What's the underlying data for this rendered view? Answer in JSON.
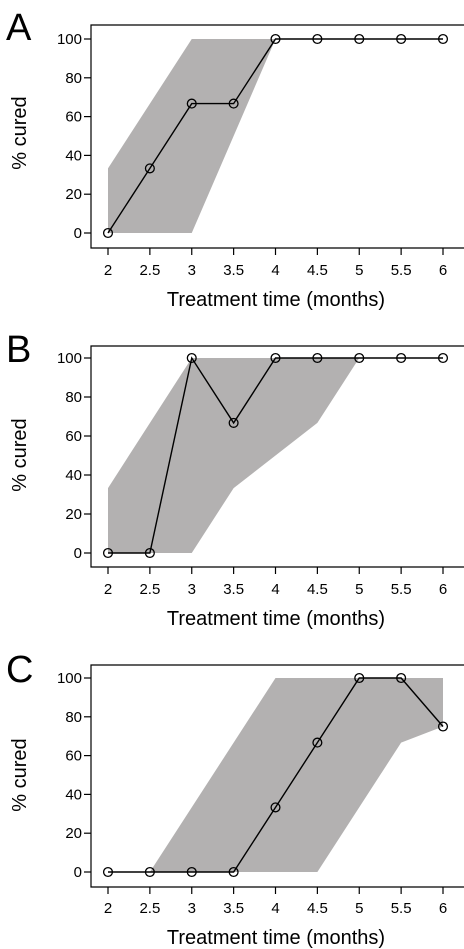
{
  "chart_data": [
    {
      "type": "line",
      "panel_label": "A",
      "xlabel": "Treatment time (months)",
      "ylabel": "% cured",
      "x_ticks": [
        "2",
        "2.5",
        "3",
        "3.5",
        "4",
        "4.5",
        "5",
        "5.5",
        "6"
      ],
      "y_ticks": [
        "0",
        "20",
        "40",
        "60",
        "80",
        "100"
      ],
      "xlim": [
        2,
        6
      ],
      "ylim": [
        0,
        100
      ],
      "series": [
        {
          "x": [
            2,
            2.5,
            3,
            3.5,
            4,
            4.5,
            5,
            5.5,
            6
          ],
          "y": [
            0,
            33.3,
            66.7,
            66.7,
            100,
            100,
            100,
            100,
            100
          ]
        }
      ],
      "band": {
        "upper": [
          [
            2,
            33.3
          ],
          [
            3,
            100
          ],
          [
            4.5,
            100
          ]
        ],
        "lower": [
          [
            2,
            0
          ],
          [
            3,
            0
          ],
          [
            4,
            100
          ],
          [
            4.5,
            100
          ]
        ]
      },
      "marker": "open-circle",
      "line_color": "#000000",
      "band_color": "#b3b1b1",
      "grid": false
    },
    {
      "type": "line",
      "panel_label": "B",
      "xlabel": "Treatment time (months)",
      "ylabel": "% cured",
      "x_ticks": [
        "2",
        "2.5",
        "3",
        "3.5",
        "4",
        "4.5",
        "5",
        "5.5",
        "6"
      ],
      "y_ticks": [
        "0",
        "20",
        "40",
        "60",
        "80",
        "100"
      ],
      "xlim": [
        2,
        6
      ],
      "ylim": [
        0,
        100
      ],
      "series": [
        {
          "x": [
            2,
            2.5,
            3,
            3.5,
            4,
            4.5,
            5,
            5.5,
            6
          ],
          "y": [
            0,
            0,
            100,
            66.7,
            100,
            100,
            100,
            100,
            100
          ]
        }
      ],
      "band": {
        "upper": [
          [
            2,
            33.3
          ],
          [
            3,
            100
          ],
          [
            5,
            100
          ]
        ],
        "lower": [
          [
            2,
            0
          ],
          [
            3,
            0
          ],
          [
            3.5,
            33.3
          ],
          [
            4.5,
            66.7
          ],
          [
            5,
            100
          ]
        ]
      },
      "marker": "open-circle",
      "line_color": "#000000",
      "band_color": "#b3b1b1",
      "grid": false
    },
    {
      "type": "line",
      "panel_label": "C",
      "xlabel": "Treatment time (months)",
      "ylabel": "% cured",
      "x_ticks": [
        "2",
        "2.5",
        "3",
        "3.5",
        "4",
        "4.5",
        "5",
        "5.5",
        "6"
      ],
      "y_ticks": [
        "0",
        "20",
        "40",
        "60",
        "80",
        "100"
      ],
      "xlim": [
        2,
        6
      ],
      "ylim": [
        0,
        100
      ],
      "series": [
        {
          "x": [
            2,
            2.5,
            3,
            3.5,
            4,
            4.5,
            5,
            5.5,
            6
          ],
          "y": [
            0,
            0,
            0,
            0,
            33.3,
            66.7,
            100,
            100,
            75
          ]
        }
      ],
      "band": {
        "upper": [
          [
            2.5,
            0
          ],
          [
            4,
            100
          ],
          [
            6,
            100
          ],
          [
            6,
            75
          ]
        ],
        "lower": [
          [
            2.5,
            0
          ],
          [
            4.5,
            0
          ],
          [
            5.5,
            66.7
          ],
          [
            6,
            75
          ]
        ]
      },
      "marker": "open-circle",
      "line_color": "#000000",
      "band_color": "#b3b1b1",
      "grid": false
    }
  ]
}
